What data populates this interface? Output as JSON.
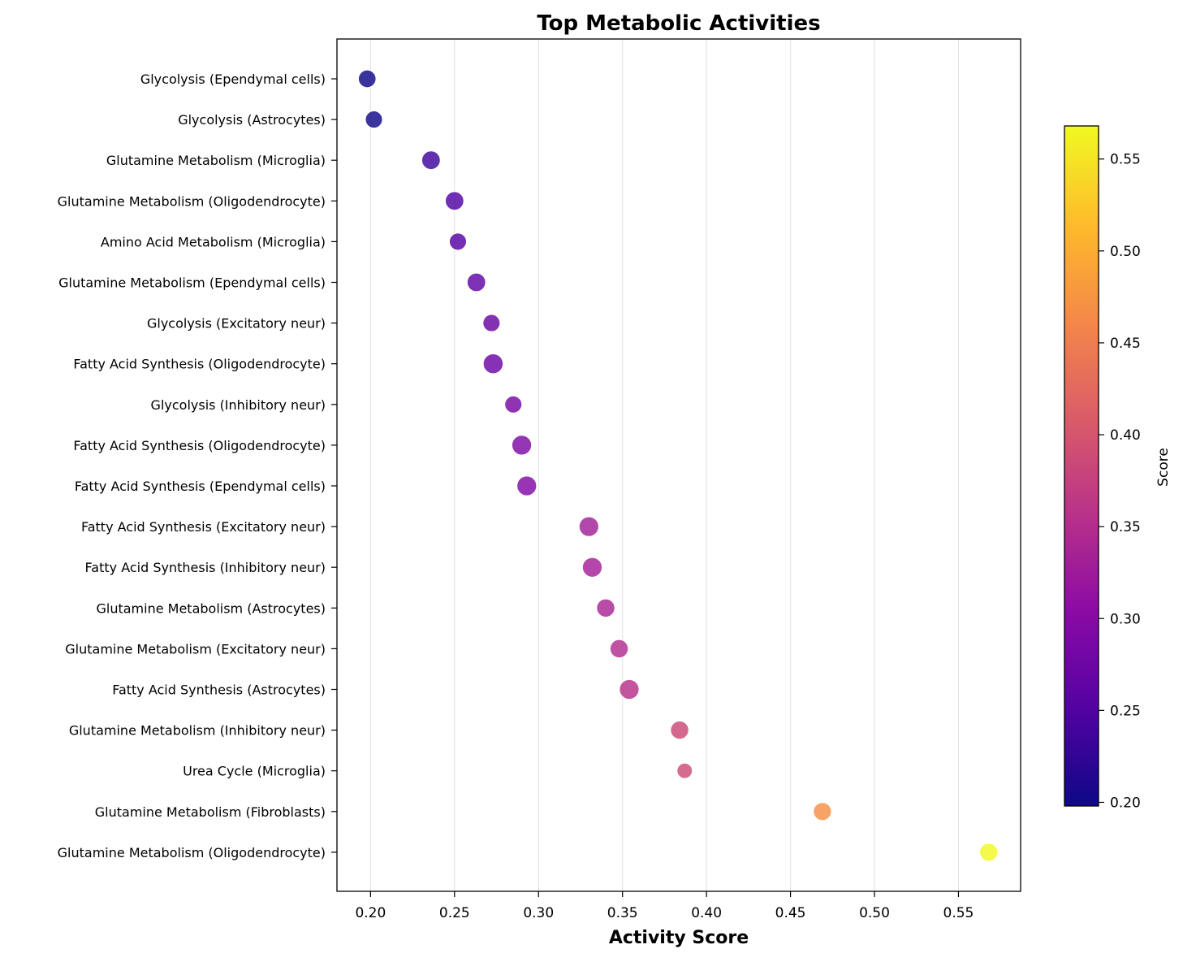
{
  "chart_data": {
    "type": "scatter",
    "title": "Top Metabolic Activities",
    "xlabel": "Activity Score",
    "xlim": [
      0.18,
      0.587
    ],
    "x_ticks": [
      "0.20",
      "0.25",
      "0.30",
      "0.35",
      "0.40",
      "0.45",
      "0.50",
      "0.55"
    ],
    "grid": "vertical-only",
    "colormap": "plasma",
    "colorbar": {
      "label": "Score",
      "range": [
        0.198,
        0.568
      ],
      "ticks": [
        "0.20",
        "0.25",
        "0.30",
        "0.35",
        "0.40",
        "0.45",
        "0.50",
        "0.55"
      ],
      "colors": [
        "#0d0887",
        "#5302a3",
        "#8b0aa5",
        "#b83289",
        "#db5c68",
        "#f48849",
        "#febc2a",
        "#f0f921"
      ]
    },
    "points": [
      {
        "label": "Glycolysis (Ependymal cells)",
        "x": 0.198,
        "size": 0.55
      },
      {
        "label": "Glycolysis (Astrocytes)",
        "x": 0.202,
        "size": 0.5
      },
      {
        "label": "Glutamine Metabolism (Microglia)",
        "x": 0.236,
        "size": 0.65
      },
      {
        "label": "Glutamine Metabolism (Oligodendrocyte)",
        "x": 0.25,
        "size": 0.65
      },
      {
        "label": "Amino Acid Metabolism (Microglia)",
        "x": 0.252,
        "size": 0.5
      },
      {
        "label": "Glutamine Metabolism (Ependymal cells)",
        "x": 0.263,
        "size": 0.65
      },
      {
        "label": "Glycolysis (Excitatory neur)",
        "x": 0.272,
        "size": 0.5
      },
      {
        "label": "Fatty Acid Synthesis (Oligodendrocyte)",
        "x": 0.273,
        "size": 0.8
      },
      {
        "label": "Glycolysis (Inhibitory neur)",
        "x": 0.285,
        "size": 0.5
      },
      {
        "label": "Fatty Acid Synthesis (Oligodendrocyte)",
        "x": 0.29,
        "size": 0.78
      },
      {
        "label": "Fatty Acid Synthesis (Ependymal cells)",
        "x": 0.293,
        "size": 0.78
      },
      {
        "label": "Fatty Acid Synthesis (Excitatory neur)",
        "x": 0.33,
        "size": 0.78
      },
      {
        "label": "Fatty Acid Synthesis (Inhibitory neur)",
        "x": 0.332,
        "size": 0.78
      },
      {
        "label": "Glutamine Metabolism (Astrocytes)",
        "x": 0.34,
        "size": 0.62
      },
      {
        "label": "Glutamine Metabolism (Excitatory neur)",
        "x": 0.348,
        "size": 0.62
      },
      {
        "label": "Fatty Acid Synthesis (Astrocytes)",
        "x": 0.354,
        "size": 0.78
      },
      {
        "label": "Glutamine Metabolism (Inhibitory neur)",
        "x": 0.384,
        "size": 0.62
      },
      {
        "label": "Urea Cycle (Microglia)",
        "x": 0.387,
        "size": 0.3
      },
      {
        "label": "Glutamine Metabolism (Fibroblasts)",
        "x": 0.469,
        "size": 0.6
      },
      {
        "label": "Glutamine Metabolism (Oligodendrocyte)",
        "x": 0.568,
        "size": 0.6
      }
    ]
  }
}
